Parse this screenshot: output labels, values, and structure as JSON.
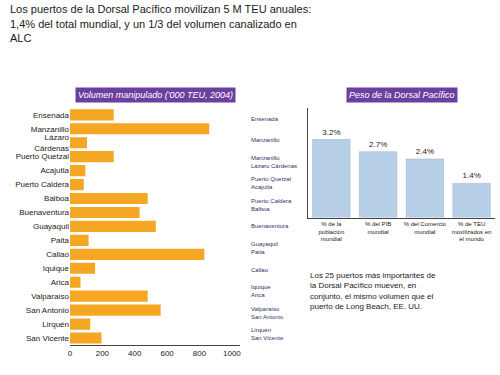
{
  "chart_data": [
    {
      "type": "bar",
      "orientation": "horizontal",
      "title": "Los puertos de la Dorsal Pacífico movilizan 5 M TEU anuales:\n1,4% del total mundial, y un 1/3 del volumen canalizado en\nALC",
      "subtitle": "Volumen manipulado ('000 TEU, 2004)",
      "categories": [
        "Ensenada",
        "Manzanillo",
        "Lázaro\nCárdenas",
        "Puerto Quetzal",
        "Acajutla",
        "Puerto Caldera",
        "Balboa",
        "Buenaventura",
        "Guayaquil",
        "Paita",
        "Callao",
        "Iquique",
        "Arica",
        "Valparaíso",
        "San Antonio",
        "Lirquén",
        "San Vicente"
      ],
      "values": [
        270,
        860,
        105,
        270,
        95,
        85,
        480,
        430,
        530,
        115,
        830,
        155,
        65,
        480,
        560,
        125,
        195
      ],
      "color": "#f5a623",
      "xlim": [
        0,
        1050
      ],
      "xticks": [
        0,
        200,
        400,
        600,
        800,
        1000
      ],
      "grid": false,
      "annotations": [
        "Ensenada",
        "Manzanillo",
        "Manzanillo\nLázaro Cárdenas",
        "Puerto Quetzal\nAcajutla",
        "Puerto Caldera\nBalboa",
        "Buenaventura",
        "Guayaquil\nPaita",
        "Callao",
        "Iquique\nArica",
        "Valparaíso\nSan Antonio",
        "Lirquén\nSan Vicente"
      ]
    },
    {
      "type": "bar",
      "title": "Peso de la Dorsal Pacífico",
      "categories": [
        "% de la\npoblación\nmundial",
        "% del PIB\nmundial",
        "% del Comercio\nmundial",
        "% de TEU\nmovilizados en\nel mundo"
      ],
      "values": [
        3.2,
        2.7,
        2.4,
        1.4
      ],
      "value_labels": [
        "3.2%",
        "2.7%",
        "2.4%",
        "1.4%"
      ],
      "data_labels": true,
      "color": "#b8cfe8",
      "ylim": [
        0,
        4.5
      ],
      "tick_labels": "x",
      "grid": false,
      "annotations": [
        "Los 25 puertos más importantes de\nla Dorsal Pacífico mueven, en\nconjunto, el mismo volumen que el\npuerto de Long Beach, EE. UU."
      ]
    }
  ]
}
